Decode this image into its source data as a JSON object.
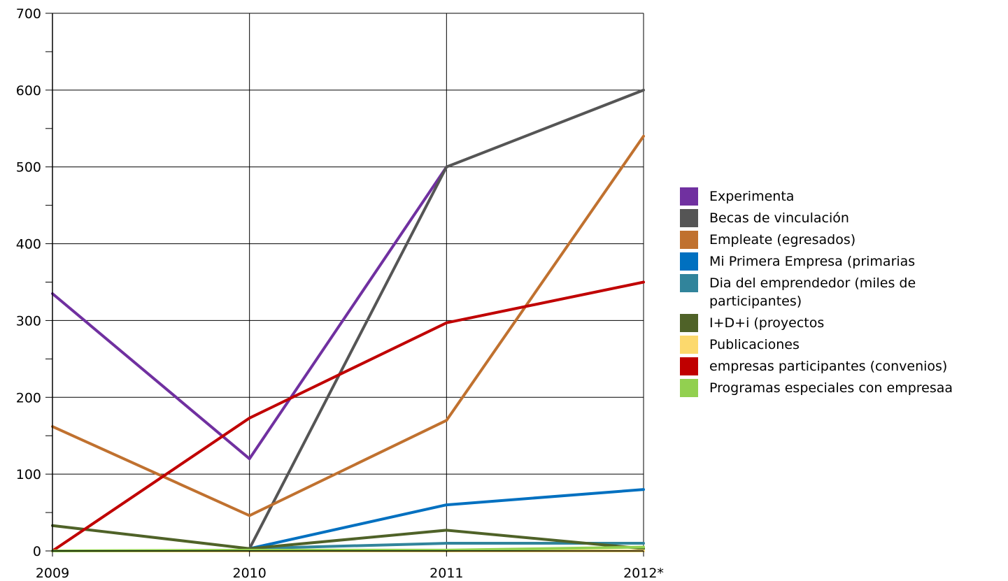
{
  "chart_data": {
    "type": "line",
    "title": "",
    "xlabel": "",
    "ylabel": "",
    "categories": [
      "2009",
      "2010",
      "2011",
      "2012*"
    ],
    "ylim": [
      0,
      700
    ],
    "yticks": [
      0,
      100,
      200,
      300,
      400,
      500,
      600,
      700
    ],
    "grid": true,
    "legend_position": "right",
    "series": [
      {
        "name": "Experimenta",
        "color": "#7030a0",
        "values": [
          335,
          120,
          500,
          null
        ]
      },
      {
        "name": "Becas de vinculación",
        "color": "#555555",
        "values": [
          null,
          3,
          500,
          600
        ]
      },
      {
        "name": "Empleate (egresados)",
        "color": "#c0712f",
        "values": [
          162,
          46,
          170,
          540
        ]
      },
      {
        "name": "Mi Primera Empresa (primarias",
        "color": "#0070c0",
        "values": [
          null,
          3,
          60,
          80
        ]
      },
      {
        "name": "Dia del emprendedor (miles de participantes)",
        "color": "#31849b",
        "values": [
          null,
          3,
          10,
          10
        ]
      },
      {
        "name": "I+D+i (proyectos",
        "color": "#4f6228",
        "values": [
          33,
          3,
          27,
          3
        ]
      },
      {
        "name": "Publicaciones",
        "color": "#fcd96d",
        "values": [
          0,
          0,
          0,
          0
        ]
      },
      {
        "name": "empresas participantes (convenios)",
        "color": "#c00000",
        "values": [
          0,
          173,
          297,
          350
        ]
      },
      {
        "name": "Programas especiales con empresaa",
        "color": "#92d050",
        "values": [
          0,
          1,
          1,
          5
        ]
      }
    ]
  }
}
